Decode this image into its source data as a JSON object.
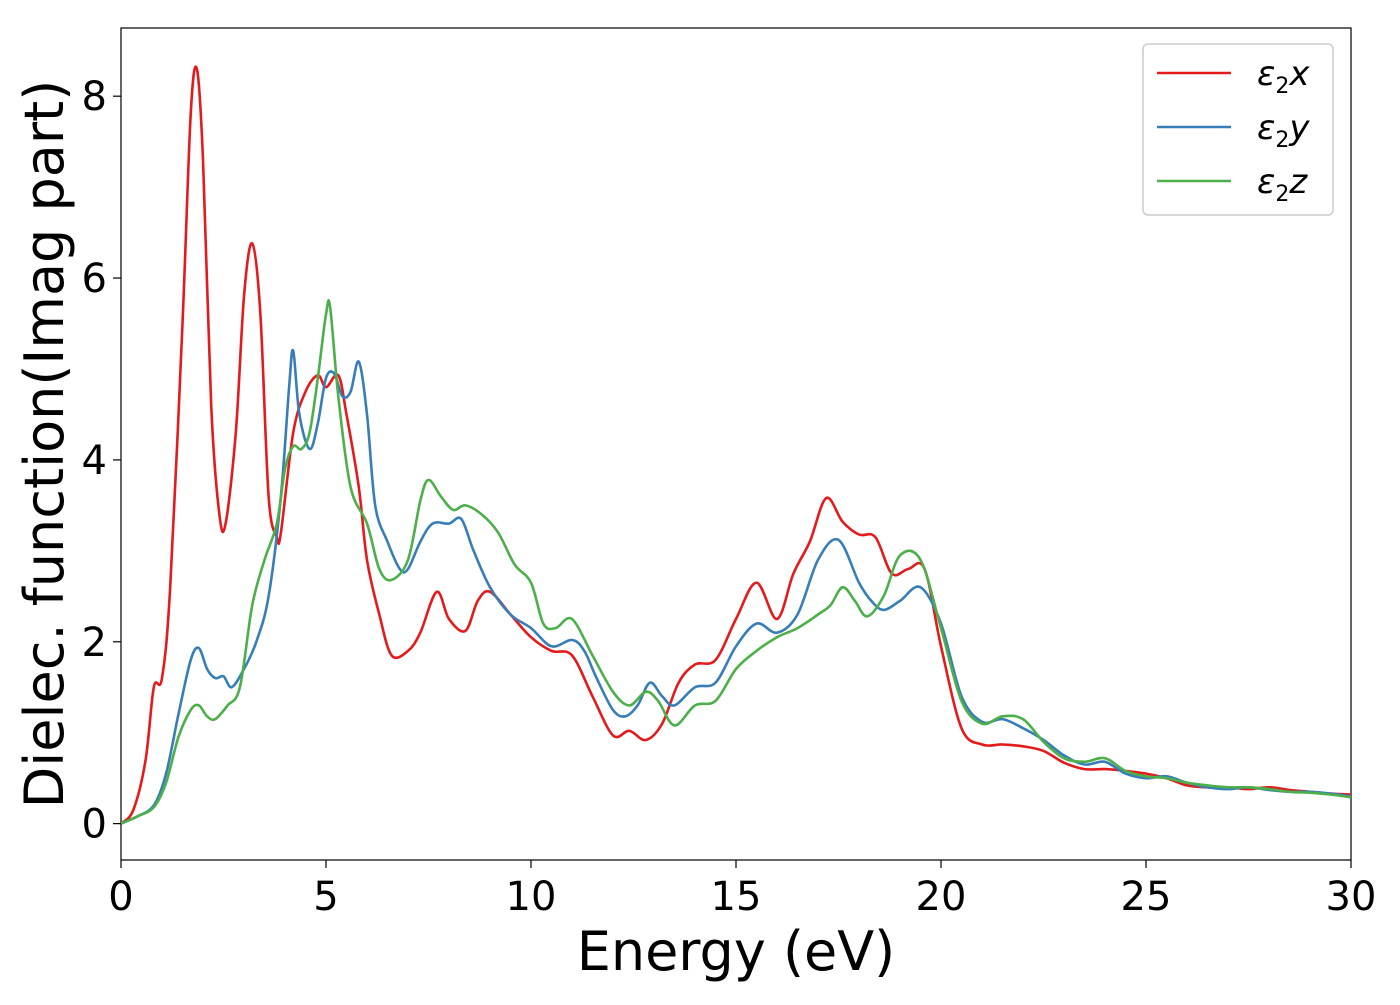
{
  "chart_data": {
    "type": "line",
    "xlabel": "Energy (eV)",
    "ylabel": "Dielec. function(Imag part)",
    "xlim": [
      0,
      30
    ],
    "ylim": [
      -0.4,
      8.75
    ],
    "xticks": [
      0,
      5,
      10,
      15,
      20,
      25,
      30
    ],
    "yticks": [
      0,
      2,
      4,
      6,
      8
    ],
    "grid": false,
    "legend_position": "top-right",
    "series": [
      {
        "name": "ε2x",
        "legend_main": "ε",
        "legend_sub": "2",
        "legend_var": "x",
        "color": "#e41a1c",
        "points": [
          [
            0,
            0
          ],
          [
            0.3,
            0.15
          ],
          [
            0.6,
            0.7
          ],
          [
            0.8,
            1.5
          ],
          [
            1.0,
            1.6
          ],
          [
            1.2,
            2.6
          ],
          [
            1.5,
            5.5
          ],
          [
            1.7,
            7.8
          ],
          [
            1.85,
            8.3
          ],
          [
            2.0,
            7.3
          ],
          [
            2.2,
            4.6
          ],
          [
            2.4,
            3.4
          ],
          [
            2.55,
            3.3
          ],
          [
            2.8,
            4.3
          ],
          [
            3.0,
            5.8
          ],
          [
            3.2,
            6.38
          ],
          [
            3.4,
            5.6
          ],
          [
            3.6,
            3.6
          ],
          [
            3.8,
            3.15
          ],
          [
            3.9,
            3.2
          ],
          [
            4.2,
            4.3
          ],
          [
            4.5,
            4.75
          ],
          [
            4.8,
            4.93
          ],
          [
            5.0,
            4.8
          ],
          [
            5.3,
            4.93
          ],
          [
            5.5,
            4.5
          ],
          [
            5.8,
            3.7
          ],
          [
            6.0,
            2.9
          ],
          [
            6.3,
            2.3
          ],
          [
            6.6,
            1.85
          ],
          [
            7.0,
            1.9
          ],
          [
            7.3,
            2.1
          ],
          [
            7.7,
            2.55
          ],
          [
            8.0,
            2.25
          ],
          [
            8.4,
            2.12
          ],
          [
            8.7,
            2.45
          ],
          [
            9.0,
            2.55
          ],
          [
            9.5,
            2.3
          ],
          [
            10.0,
            2.05
          ],
          [
            10.5,
            1.9
          ],
          [
            11.0,
            1.85
          ],
          [
            11.5,
            1.4
          ],
          [
            12.0,
            0.97
          ],
          [
            12.4,
            1.02
          ],
          [
            12.8,
            0.92
          ],
          [
            13.2,
            1.1
          ],
          [
            13.6,
            1.55
          ],
          [
            14.0,
            1.75
          ],
          [
            14.5,
            1.8
          ],
          [
            15.0,
            2.25
          ],
          [
            15.5,
            2.65
          ],
          [
            16.0,
            2.25
          ],
          [
            16.4,
            2.75
          ],
          [
            16.8,
            3.1
          ],
          [
            17.2,
            3.58
          ],
          [
            17.6,
            3.32
          ],
          [
            18.0,
            3.18
          ],
          [
            18.4,
            3.15
          ],
          [
            18.8,
            2.75
          ],
          [
            19.2,
            2.8
          ],
          [
            19.6,
            2.8
          ],
          [
            20.0,
            1.95
          ],
          [
            20.5,
            1.05
          ],
          [
            21.0,
            0.87
          ],
          [
            21.5,
            0.87
          ],
          [
            22.0,
            0.85
          ],
          [
            22.5,
            0.8
          ],
          [
            23.0,
            0.67
          ],
          [
            23.5,
            0.6
          ],
          [
            24.0,
            0.6
          ],
          [
            24.5,
            0.58
          ],
          [
            25.0,
            0.55
          ],
          [
            25.5,
            0.5
          ],
          [
            26.0,
            0.42
          ],
          [
            26.5,
            0.4
          ],
          [
            27.0,
            0.4
          ],
          [
            27.5,
            0.38
          ],
          [
            28.0,
            0.4
          ],
          [
            28.5,
            0.37
          ],
          [
            29.0,
            0.35
          ],
          [
            29.5,
            0.33
          ],
          [
            30.0,
            0.32
          ]
        ]
      },
      {
        "name": "ε2y",
        "legend_main": "ε",
        "legend_sub": "2",
        "legend_var": "y",
        "color": "#377eb8",
        "points": [
          [
            0,
            0
          ],
          [
            0.4,
            0.08
          ],
          [
            0.8,
            0.2
          ],
          [
            1.1,
            0.55
          ],
          [
            1.4,
            1.2
          ],
          [
            1.7,
            1.8
          ],
          [
            1.9,
            1.93
          ],
          [
            2.1,
            1.7
          ],
          [
            2.3,
            1.6
          ],
          [
            2.5,
            1.62
          ],
          [
            2.7,
            1.5
          ],
          [
            3.0,
            1.7
          ],
          [
            3.3,
            2.0
          ],
          [
            3.6,
            2.5
          ],
          [
            3.9,
            3.6
          ],
          [
            4.1,
            4.8
          ],
          [
            4.2,
            5.2
          ],
          [
            4.35,
            4.5
          ],
          [
            4.6,
            4.12
          ],
          [
            4.8,
            4.4
          ],
          [
            5.0,
            4.9
          ],
          [
            5.2,
            4.95
          ],
          [
            5.4,
            4.7
          ],
          [
            5.6,
            4.75
          ],
          [
            5.8,
            5.08
          ],
          [
            6.0,
            4.5
          ],
          [
            6.2,
            3.5
          ],
          [
            6.5,
            3.1
          ],
          [
            6.8,
            2.8
          ],
          [
            7.0,
            2.8
          ],
          [
            7.3,
            3.1
          ],
          [
            7.6,
            3.3
          ],
          [
            8.0,
            3.3
          ],
          [
            8.3,
            3.35
          ],
          [
            8.6,
            3.0
          ],
          [
            9.0,
            2.6
          ],
          [
            9.5,
            2.3
          ],
          [
            10.0,
            2.15
          ],
          [
            10.5,
            1.95
          ],
          [
            11.0,
            2.02
          ],
          [
            11.3,
            1.9
          ],
          [
            11.6,
            1.6
          ],
          [
            12.0,
            1.25
          ],
          [
            12.3,
            1.18
          ],
          [
            12.6,
            1.3
          ],
          [
            12.9,
            1.55
          ],
          [
            13.2,
            1.4
          ],
          [
            13.5,
            1.3
          ],
          [
            14.0,
            1.5
          ],
          [
            14.5,
            1.55
          ],
          [
            15.0,
            1.95
          ],
          [
            15.5,
            2.2
          ],
          [
            16.0,
            2.1
          ],
          [
            16.5,
            2.3
          ],
          [
            17.0,
            2.9
          ],
          [
            17.5,
            3.12
          ],
          [
            18.0,
            2.65
          ],
          [
            18.3,
            2.45
          ],
          [
            18.6,
            2.35
          ],
          [
            19.0,
            2.45
          ],
          [
            19.5,
            2.6
          ],
          [
            20.0,
            2.2
          ],
          [
            20.5,
            1.4
          ],
          [
            21.0,
            1.12
          ],
          [
            21.5,
            1.15
          ],
          [
            22.0,
            1.05
          ],
          [
            22.5,
            0.92
          ],
          [
            23.0,
            0.75
          ],
          [
            23.5,
            0.65
          ],
          [
            24.0,
            0.68
          ],
          [
            24.5,
            0.55
          ],
          [
            25.0,
            0.5
          ],
          [
            25.5,
            0.52
          ],
          [
            26.0,
            0.45
          ],
          [
            26.5,
            0.4
          ],
          [
            27.0,
            0.38
          ],
          [
            27.5,
            0.4
          ],
          [
            28.0,
            0.37
          ],
          [
            28.5,
            0.35
          ],
          [
            29.0,
            0.35
          ],
          [
            29.5,
            0.33
          ],
          [
            30.0,
            0.3
          ]
        ]
      },
      {
        "name": "ε2z",
        "legend_main": "ε",
        "legend_sub": "2",
        "legend_var": "z",
        "color": "#4daf4a",
        "points": [
          [
            0,
            0
          ],
          [
            0.4,
            0.08
          ],
          [
            0.8,
            0.18
          ],
          [
            1.1,
            0.45
          ],
          [
            1.4,
            0.95
          ],
          [
            1.7,
            1.25
          ],
          [
            1.9,
            1.3
          ],
          [
            2.1,
            1.18
          ],
          [
            2.3,
            1.15
          ],
          [
            2.6,
            1.3
          ],
          [
            2.9,
            1.5
          ],
          [
            3.2,
            2.4
          ],
          [
            3.5,
            2.9
          ],
          [
            3.8,
            3.3
          ],
          [
            4.0,
            3.9
          ],
          [
            4.2,
            4.15
          ],
          [
            4.4,
            4.12
          ],
          [
            4.6,
            4.3
          ],
          [
            4.8,
            4.9
          ],
          [
            5.0,
            5.6
          ],
          [
            5.1,
            5.68
          ],
          [
            5.3,
            4.7
          ],
          [
            5.6,
            3.7
          ],
          [
            6.0,
            3.3
          ],
          [
            6.3,
            2.8
          ],
          [
            6.6,
            2.68
          ],
          [
            7.0,
            2.9
          ],
          [
            7.3,
            3.55
          ],
          [
            7.5,
            3.78
          ],
          [
            7.8,
            3.6
          ],
          [
            8.1,
            3.45
          ],
          [
            8.4,
            3.5
          ],
          [
            8.8,
            3.4
          ],
          [
            9.2,
            3.2
          ],
          [
            9.6,
            2.85
          ],
          [
            10.0,
            2.65
          ],
          [
            10.3,
            2.2
          ],
          [
            10.6,
            2.15
          ],
          [
            11.0,
            2.25
          ],
          [
            11.5,
            1.85
          ],
          [
            12.0,
            1.45
          ],
          [
            12.4,
            1.3
          ],
          [
            12.8,
            1.45
          ],
          [
            13.1,
            1.35
          ],
          [
            13.5,
            1.08
          ],
          [
            14.0,
            1.3
          ],
          [
            14.5,
            1.35
          ],
          [
            15.0,
            1.7
          ],
          [
            15.5,
            1.9
          ],
          [
            16.0,
            2.05
          ],
          [
            16.5,
            2.15
          ],
          [
            17.0,
            2.3
          ],
          [
            17.3,
            2.4
          ],
          [
            17.6,
            2.6
          ],
          [
            17.9,
            2.45
          ],
          [
            18.2,
            2.28
          ],
          [
            18.6,
            2.5
          ],
          [
            19.0,
            2.95
          ],
          [
            19.5,
            2.9
          ],
          [
            20.0,
            2.15
          ],
          [
            20.5,
            1.35
          ],
          [
            21.0,
            1.1
          ],
          [
            21.5,
            1.18
          ],
          [
            22.0,
            1.15
          ],
          [
            22.5,
            0.9
          ],
          [
            23.0,
            0.72
          ],
          [
            23.5,
            0.68
          ],
          [
            24.0,
            0.72
          ],
          [
            24.5,
            0.58
          ],
          [
            25.0,
            0.52
          ],
          [
            25.5,
            0.5
          ],
          [
            26.0,
            0.45
          ],
          [
            26.5,
            0.42
          ],
          [
            27.0,
            0.4
          ],
          [
            27.5,
            0.4
          ],
          [
            28.0,
            0.38
          ],
          [
            28.5,
            0.35
          ],
          [
            29.0,
            0.34
          ],
          [
            29.5,
            0.32
          ],
          [
            30.0,
            0.29
          ]
        ]
      }
    ]
  }
}
